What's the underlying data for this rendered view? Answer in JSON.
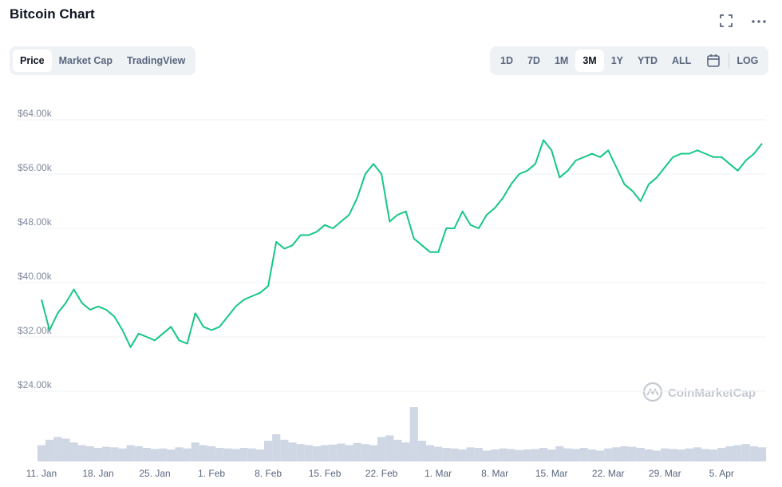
{
  "header": {
    "title": "Bitcoin Chart"
  },
  "tabs": [
    {
      "label": "Price",
      "selected": true
    },
    {
      "label": "Market Cap",
      "selected": false
    },
    {
      "label": "TradingView",
      "selected": false
    }
  ],
  "ranges": [
    {
      "label": "1D",
      "selected": false
    },
    {
      "label": "7D",
      "selected": false
    },
    {
      "label": "1M",
      "selected": false
    },
    {
      "label": "3M",
      "selected": true
    },
    {
      "label": "1Y",
      "selected": false
    },
    {
      "label": "YTD",
      "selected": false
    },
    {
      "label": "ALL",
      "selected": false
    }
  ],
  "log_button": "LOG",
  "watermark": "CoinMarketCap",
  "chart_data": {
    "type": "line",
    "categories": [
      "11. Jan",
      null,
      null,
      null,
      null,
      null,
      null,
      "18. Jan",
      null,
      null,
      null,
      null,
      null,
      null,
      "25. Jan",
      null,
      null,
      null,
      null,
      null,
      null,
      "1. Feb",
      null,
      null,
      null,
      null,
      null,
      null,
      "8. Feb",
      null,
      null,
      null,
      null,
      null,
      null,
      "15. Feb",
      null,
      null,
      null,
      null,
      null,
      null,
      "22. Feb",
      null,
      null,
      null,
      null,
      null,
      null,
      "1. Mar",
      null,
      null,
      null,
      null,
      null,
      null,
      "8. Mar",
      null,
      null,
      null,
      null,
      null,
      null,
      "15. Mar",
      null,
      null,
      null,
      null,
      null,
      null,
      "22. Mar",
      null,
      null,
      null,
      null,
      null,
      null,
      "29. Mar",
      null,
      null,
      null,
      null,
      null,
      null,
      "5. Apr",
      null,
      null,
      null,
      null,
      null
    ],
    "series": [
      {
        "color": "#16c784",
        "values": [
          37500,
          33000,
          35500,
          37000,
          39000,
          37000,
          36000,
          36500,
          36000,
          35000,
          33000,
          30500,
          32500,
          32000,
          31500,
          32500,
          33500,
          31500,
          31000,
          35500,
          33500,
          33000,
          33500,
          35000,
          36500,
          37500,
          38000,
          38500,
          39500,
          46000,
          45000,
          45500,
          47000,
          47000,
          47500,
          48500,
          48000,
          49000,
          50000,
          52500,
          56000,
          57500,
          56000,
          49000,
          50000,
          50500,
          46500,
          45500,
          44500,
          44500,
          48000,
          48000,
          50500,
          48500,
          48000,
          50000,
          51000,
          52500,
          54500,
          56000,
          56500,
          57500,
          61000,
          59500,
          55500,
          56500,
          58000,
          58500,
          59000,
          58500,
          59500,
          57000,
          54500,
          53500,
          52000,
          54500,
          55500,
          57000,
          58500,
          59000,
          59000,
          59500,
          59000,
          58500,
          58500,
          57500,
          56500,
          58000,
          59000,
          60500
        ]
      },
      {
        "color": "#cfd6e4",
        "kind": "volume",
        "values": [
          30,
          40,
          45,
          42,
          35,
          30,
          28,
          25,
          27,
          26,
          24,
          30,
          28,
          25,
          23,
          24,
          22,
          26,
          24,
          35,
          30,
          28,
          25,
          24,
          23,
          25,
          24,
          22,
          38,
          50,
          40,
          35,
          32,
          30,
          28,
          30,
          31,
          33,
          30,
          34,
          32,
          30,
          45,
          48,
          40,
          35,
          100,
          38,
          30,
          27,
          25,
          24,
          22,
          26,
          25,
          20,
          22,
          24,
          23,
          21,
          22,
          23,
          25,
          22,
          28,
          24,
          23,
          25,
          22,
          20,
          24,
          26,
          28,
          27,
          25,
          22,
          20,
          24,
          23,
          22,
          24,
          26,
          23,
          22,
          25,
          28,
          30,
          32,
          28,
          26
        ]
      }
    ],
    "ylim": [
      20000,
      64000
    ],
    "yticks": [
      {
        "value": 24000,
        "label": "$24.00k"
      },
      {
        "value": 32000,
        "label": "$32.00k"
      },
      {
        "value": 40000,
        "label": "$40.00k"
      },
      {
        "value": 48000,
        "label": "$48.00k"
      },
      {
        "value": 56000,
        "label": "$56.00k"
      },
      {
        "value": 64000,
        "label": "$64.00k"
      }
    ],
    "grid": true
  }
}
